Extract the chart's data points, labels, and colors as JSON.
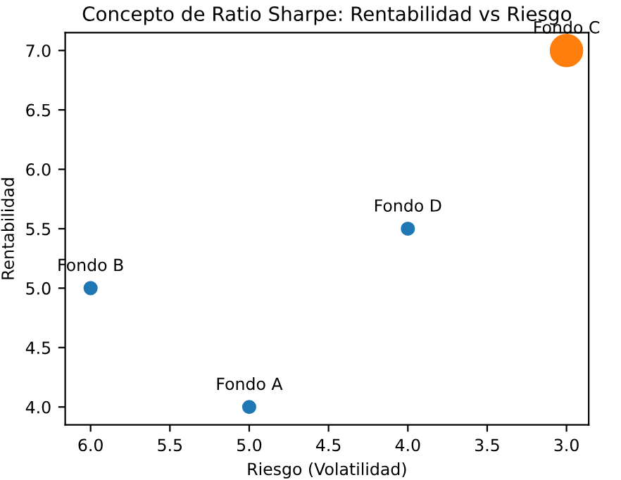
{
  "chart_data": {
    "type": "bubble",
    "title": "Concepto de Ratio Sharpe: Rentabilidad vs Riesgo",
    "xlabel": "Riesgo (Volatilidad)",
    "ylabel": "Rentabilidad",
    "x": [
      5.0,
      6.0,
      3.0,
      4.0
    ],
    "values": [
      4.0,
      5.0,
      7.0,
      5.5
    ],
    "sizes": [
      0.15,
      0.15,
      1,
      0.15
    ],
    "colors": [
      "#1f77b4",
      "#1f77b4",
      "#ff7f0e",
      "#1f77b4"
    ],
    "annotations": [
      {
        "text": "Fondo A",
        "x": 5.0,
        "y": 4.0
      },
      {
        "text": "Fondo B",
        "x": 6.0,
        "y": 5.0
      },
      {
        "text": "Fondo C",
        "x": 3.0,
        "y": 7.0
      },
      {
        "text": "Fondo D",
        "x": 4.0,
        "y": 5.5
      }
    ],
    "xlim": [
      6.16,
      2.86
    ],
    "xticks": [
      {
        "value": 6,
        "label": "6.0"
      },
      {
        "value": 5.5,
        "label": "5.5"
      },
      {
        "value": 5,
        "label": "5.0"
      },
      {
        "value": 4.5,
        "label": "4.5"
      },
      {
        "value": 4,
        "label": "4.0"
      },
      {
        "value": 3.5,
        "label": "3.5"
      },
      {
        "value": 3,
        "label": "3.0"
      }
    ],
    "ylim": [
      3.85,
      7.15
    ],
    "yticks": [
      {
        "value": 4,
        "label": "4.0"
      },
      {
        "value": 4.5,
        "label": "4.5"
      },
      {
        "value": 5,
        "label": "5.0"
      },
      {
        "value": 5.5,
        "label": "5.5"
      },
      {
        "value": 6,
        "label": "6.0"
      },
      {
        "value": 6.5,
        "label": "6.5"
      },
      {
        "value": 7,
        "label": "7.0"
      }
    ],
    "grid": false,
    "legend": false
  }
}
